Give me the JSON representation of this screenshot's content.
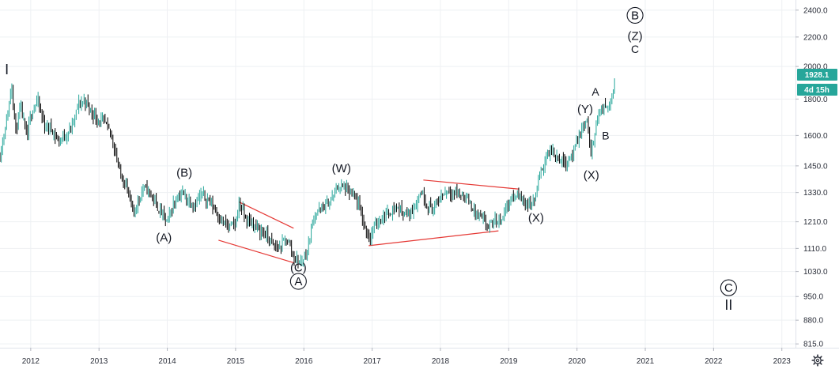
{
  "colors": {
    "bullish": "#26a69a",
    "bearish": "#000000",
    "trendline": "#e53935",
    "grid": "#eef0f3",
    "price_tag_bg": "#26a69a",
    "axis_text": "#2a2e39"
  },
  "toolbar": {
    "settings_icon": "gear-icon"
  },
  "price_tags": {
    "last_price": "1928.1",
    "countdown": "4d 15h"
  },
  "chart_data": {
    "type": "candlestick",
    "title": "",
    "xlabel": "",
    "ylabel": "",
    "y_scale": "log",
    "ylim": [
      805,
      2480
    ],
    "xlim": [
      2011.55,
      2023.2
    ],
    "grid": true,
    "y_ticks": [
      "815.0",
      "880.0",
      "950.0",
      "1030.0",
      "1110.0",
      "1210.0",
      "1330.0",
      "1450.0",
      "1600.0",
      "1800.0",
      "2000.0",
      "2200.0",
      "2400.0"
    ],
    "x_ticks": [
      "2012",
      "2013",
      "2014",
      "2015",
      "2016",
      "2017",
      "2018",
      "2019",
      "2020",
      "2021",
      "2022",
      "2023"
    ],
    "price_path": [
      [
        2011.55,
        1500
      ],
      [
        2011.68,
        1750
      ],
      [
        2011.72,
        1900
      ],
      [
        2011.78,
        1620
      ],
      [
        2011.85,
        1750
      ],
      [
        2011.95,
        1580
      ],
      [
        2012.0,
        1720
      ],
      [
        2012.1,
        1790
      ],
      [
        2012.2,
        1650
      ],
      [
        2012.3,
        1640
      ],
      [
        2012.4,
        1570
      ],
      [
        2012.5,
        1600
      ],
      [
        2012.6,
        1640
      ],
      [
        2012.7,
        1770
      ],
      [
        2012.8,
        1790
      ],
      [
        2012.9,
        1720
      ],
      [
        2013.0,
        1680
      ],
      [
        2013.1,
        1660
      ],
      [
        2013.2,
        1580
      ],
      [
        2013.3,
        1420
      ],
      [
        2013.4,
        1360
      ],
      [
        2013.5,
        1240
      ],
      [
        2013.55,
        1280
      ],
      [
        2013.65,
        1350
      ],
      [
        2013.75,
        1330
      ],
      [
        2013.85,
        1270
      ],
      [
        2013.95,
        1230
      ],
      [
        2014.0,
        1210
      ],
      [
        2014.1,
        1290
      ],
      [
        2014.2,
        1330
      ],
      [
        2014.3,
        1300
      ],
      [
        2014.4,
        1280
      ],
      [
        2014.5,
        1320
      ],
      [
        2014.6,
        1300
      ],
      [
        2014.7,
        1260
      ],
      [
        2014.8,
        1210
      ],
      [
        2014.9,
        1190
      ],
      [
        2015.0,
        1200
      ],
      [
        2015.05,
        1290
      ],
      [
        2015.15,
        1220
      ],
      [
        2015.25,
        1200
      ],
      [
        2015.35,
        1180
      ],
      [
        2015.45,
        1160
      ],
      [
        2015.55,
        1120
      ],
      [
        2015.65,
        1110
      ],
      [
        2015.75,
        1150
      ],
      [
        2015.85,
        1080
      ],
      [
        2015.95,
        1060
      ],
      [
        2016.05,
        1100
      ],
      [
        2016.15,
        1240
      ],
      [
        2016.3,
        1270
      ],
      [
        2016.4,
        1300
      ],
      [
        2016.5,
        1360
      ],
      [
        2016.6,
        1350
      ],
      [
        2016.7,
        1320
      ],
      [
        2016.8,
        1280
      ],
      [
        2016.9,
        1180
      ],
      [
        2016.97,
        1150
      ],
      [
        2017.05,
        1200
      ],
      [
        2017.15,
        1230
      ],
      [
        2017.25,
        1250
      ],
      [
        2017.35,
        1270
      ],
      [
        2017.45,
        1250
      ],
      [
        2017.55,
        1240
      ],
      [
        2017.65,
        1290
      ],
      [
        2017.72,
        1340
      ],
      [
        2017.8,
        1280
      ],
      [
        2017.9,
        1260
      ],
      [
        2018.0,
        1310
      ],
      [
        2018.1,
        1340
      ],
      [
        2018.2,
        1330
      ],
      [
        2018.3,
        1320
      ],
      [
        2018.4,
        1300
      ],
      [
        2018.5,
        1250
      ],
      [
        2018.6,
        1220
      ],
      [
        2018.7,
        1190
      ],
      [
        2018.8,
        1210
      ],
      [
        2018.9,
        1230
      ],
      [
        2019.0,
        1290
      ],
      [
        2019.1,
        1320
      ],
      [
        2019.2,
        1300
      ],
      [
        2019.3,
        1280
      ],
      [
        2019.38,
        1300
      ],
      [
        2019.45,
        1400
      ],
      [
        2019.55,
        1500
      ],
      [
        2019.65,
        1520
      ],
      [
        2019.75,
        1480
      ],
      [
        2019.85,
        1470
      ],
      [
        2019.95,
        1520
      ],
      [
        2020.0,
        1560
      ],
      [
        2020.08,
        1640
      ],
      [
        2020.15,
        1680
      ],
      [
        2020.2,
        1480
      ],
      [
        2020.27,
        1650
      ],
      [
        2020.35,
        1740
      ],
      [
        2020.45,
        1760
      ],
      [
        2020.52,
        1820
      ],
      [
        2020.56,
        1950
      ]
    ],
    "trendlines": [
      {
        "from": [
          2015.05,
          1290
        ],
        "to": [
          2015.85,
          1185
        ]
      },
      {
        "from": [
          2014.75,
          1140
        ],
        "to": [
          2015.85,
          1060
        ]
      },
      {
        "from": [
          2017.75,
          1385
        ],
        "to": [
          2019.15,
          1345
        ]
      },
      {
        "from": [
          2016.95,
          1120
        ],
        "to": [
          2018.85,
          1175
        ]
      }
    ],
    "wave_labels": [
      {
        "text": "I",
        "x": 2011.65,
        "y": 1950,
        "circled": false,
        "size": "large"
      },
      {
        "text": "(A)",
        "x": 2013.95,
        "y": 1135,
        "circled": false,
        "size": "medium"
      },
      {
        "text": "(B)",
        "x": 2014.25,
        "y": 1400,
        "circled": false,
        "size": "medium"
      },
      {
        "text": "(C)",
        "x": 2015.92,
        "y": 1030,
        "circled": false,
        "size": "medium"
      },
      {
        "text": "A",
        "x": 2015.92,
        "y": 985,
        "circled": true,
        "size": "medium"
      },
      {
        "text": "(W)",
        "x": 2016.55,
        "y": 1420,
        "circled": false,
        "size": "medium"
      },
      {
        "text": "(X)",
        "x": 2019.4,
        "y": 1210,
        "circled": false,
        "size": "medium"
      },
      {
        "text": "(Y)",
        "x": 2020.12,
        "y": 1720,
        "circled": false,
        "size": "medium"
      },
      {
        "text": "A",
        "x": 2020.27,
        "y": 1820,
        "circled": false,
        "size": "small"
      },
      {
        "text": "(X)",
        "x": 2020.21,
        "y": 1390,
        "circled": false,
        "size": "medium"
      },
      {
        "text": "B",
        "x": 2020.42,
        "y": 1580,
        "circled": false,
        "size": "small"
      },
      {
        "text": "B",
        "x": 2020.85,
        "y": 2330,
        "circled": true,
        "size": "medium"
      },
      {
        "text": "(Z)",
        "x": 2020.85,
        "y": 2180,
        "circled": false,
        "size": "medium"
      },
      {
        "text": "C",
        "x": 2020.85,
        "y": 2090,
        "circled": false,
        "size": "small"
      },
      {
        "text": "C",
        "x": 2022.22,
        "y": 965,
        "circled": true,
        "size": "medium"
      },
      {
        "text": "II",
        "x": 2022.22,
        "y": 910,
        "circled": false,
        "size": "large"
      }
    ]
  }
}
